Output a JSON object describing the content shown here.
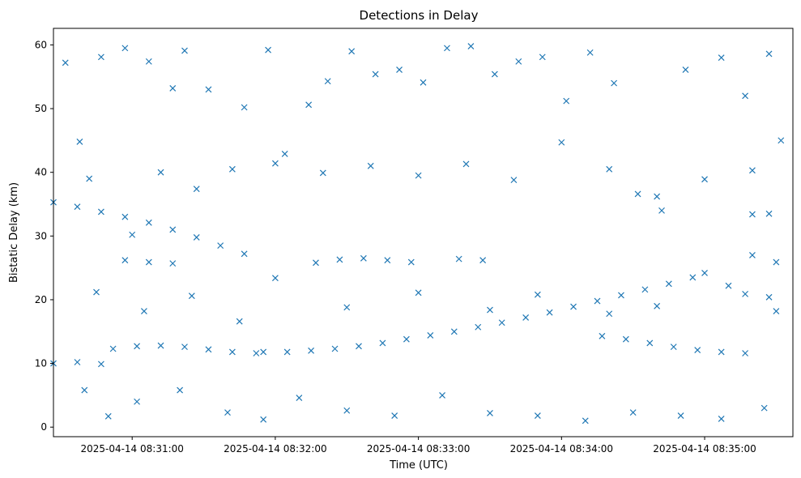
{
  "chart_data": {
    "type": "scatter",
    "title": "Detections in Delay",
    "xlabel": "Time (UTC)",
    "ylabel": "Bistatic Delay (km)",
    "marker": "x",
    "color": "#1f77b4",
    "x_type": "time",
    "xlim": [
      "2025-04-14 08:30:27",
      "2025-04-14 08:35:37"
    ],
    "ylim": [
      -1.5,
      62.6
    ],
    "xticks": [
      "2025-04-14 08:31:00",
      "2025-04-14 08:32:00",
      "2025-04-14 08:33:00",
      "2025-04-14 08:34:00",
      "2025-04-14 08:35:00"
    ],
    "yticks": [
      0,
      10,
      20,
      30,
      40,
      50,
      60
    ],
    "grid": false,
    "series": [
      {
        "values_description": "rising track",
        "points": [
          [
            "2025-04-14 08:31:55",
            11.8
          ],
          [
            "2025-04-14 08:32:05",
            11.8
          ],
          [
            "2025-04-14 08:32:15",
            12.0
          ],
          [
            "2025-04-14 08:32:25",
            12.3
          ],
          [
            "2025-04-14 08:32:35",
            12.7
          ],
          [
            "2025-04-14 08:32:45",
            13.2
          ],
          [
            "2025-04-14 08:32:55",
            13.8
          ],
          [
            "2025-04-14 08:33:05",
            14.4
          ],
          [
            "2025-04-14 08:33:15",
            15.0
          ],
          [
            "2025-04-14 08:33:25",
            15.7
          ],
          [
            "2025-04-14 08:33:35",
            16.4
          ],
          [
            "2025-04-14 08:33:45",
            17.2
          ],
          [
            "2025-04-14 08:33:55",
            18.0
          ],
          [
            "2025-04-14 08:34:05",
            18.9
          ],
          [
            "2025-04-14 08:34:15",
            19.8
          ],
          [
            "2025-04-14 08:34:25",
            20.7
          ],
          [
            "2025-04-14 08:34:35",
            21.6
          ],
          [
            "2025-04-14 08:34:45",
            22.5
          ],
          [
            "2025-04-14 08:34:55",
            23.5
          ],
          [
            "2025-04-14 08:35:00",
            24.2
          ]
        ]
      },
      {
        "values_description": "falling track",
        "points": [
          [
            "2025-04-14 08:30:27",
            35.3
          ],
          [
            "2025-04-14 08:30:37",
            34.6
          ],
          [
            "2025-04-14 08:30:47",
            33.8
          ],
          [
            "2025-04-14 08:30:57",
            33.0
          ],
          [
            "2025-04-14 08:31:07",
            32.1
          ],
          [
            "2025-04-14 08:31:17",
            31.0
          ],
          [
            "2025-04-14 08:31:27",
            29.8
          ],
          [
            "2025-04-14 08:31:37",
            28.5
          ],
          [
            "2025-04-14 08:31:47",
            27.2
          ]
        ]
      },
      {
        "values_description": "low track",
        "points": [
          [
            "2025-04-14 08:30:52",
            12.3
          ],
          [
            "2025-04-14 08:31:02",
            12.7
          ],
          [
            "2025-04-14 08:31:12",
            12.8
          ],
          [
            "2025-04-14 08:31:22",
            12.6
          ],
          [
            "2025-04-14 08:31:32",
            12.2
          ],
          [
            "2025-04-14 08:31:42",
            11.8
          ],
          [
            "2025-04-14 08:31:52",
            11.6
          ],
          [
            "2025-04-14 08:34:17",
            14.3
          ],
          [
            "2025-04-14 08:34:27",
            13.8
          ],
          [
            "2025-04-14 08:34:37",
            13.2
          ],
          [
            "2025-04-14 08:34:47",
            12.6
          ],
          [
            "2025-04-14 08:34:57",
            12.1
          ],
          [
            "2025-04-14 08:35:07",
            11.8
          ],
          [
            "2025-04-14 08:35:17",
            11.6
          ]
        ]
      },
      {
        "values_description": "mid track",
        "points": [
          [
            "2025-04-14 08:30:57",
            26.2
          ],
          [
            "2025-04-14 08:31:07",
            25.9
          ],
          [
            "2025-04-14 08:31:17",
            25.7
          ],
          [
            "2025-04-14 08:32:17",
            25.8
          ],
          [
            "2025-04-14 08:32:27",
            26.3
          ],
          [
            "2025-04-14 08:32:37",
            26.5
          ],
          [
            "2025-04-14 08:32:47",
            26.2
          ],
          [
            "2025-04-14 08:32:57",
            25.9
          ],
          [
            "2025-04-14 08:33:17",
            26.4
          ],
          [
            "2025-04-14 08:33:27",
            26.2
          ],
          [
            "2025-04-14 08:35:17",
            20.9
          ],
          [
            "2025-04-14 08:35:27",
            20.4
          ],
          [
            "2025-04-14 08:35:20",
            33.4
          ],
          [
            "2025-04-14 08:35:27",
            33.5
          ],
          [
            "2025-04-14 08:35:20",
            27.0
          ],
          [
            "2025-04-14 08:35:30",
            25.9
          ],
          [
            "2025-04-14 08:30:27",
            10.0
          ],
          [
            "2025-04-14 08:30:37",
            10.2
          ],
          [
            "2025-04-14 08:30:47",
            9.9
          ]
        ]
      },
      {
        "values_description": "scatter noise",
        "points": [
          [
            "2025-04-14 08:30:32",
            57.2
          ],
          [
            "2025-04-14 08:30:38",
            44.8
          ],
          [
            "2025-04-14 08:30:47",
            58.1
          ],
          [
            "2025-04-14 08:30:57",
            59.5
          ],
          [
            "2025-04-14 08:31:07",
            57.4
          ],
          [
            "2025-04-14 08:31:17",
            53.2
          ],
          [
            "2025-04-14 08:31:22",
            59.1
          ],
          [
            "2025-04-14 08:31:32",
            53.0
          ],
          [
            "2025-04-14 08:31:47",
            50.2
          ],
          [
            "2025-04-14 08:31:57",
            59.2
          ],
          [
            "2025-04-14 08:32:04",
            42.9
          ],
          [
            "2025-04-14 08:32:14",
            50.6
          ],
          [
            "2025-04-14 08:32:22",
            54.3
          ],
          [
            "2025-04-14 08:32:32",
            59.0
          ],
          [
            "2025-04-14 08:32:42",
            55.4
          ],
          [
            "2025-04-14 08:32:52",
            56.1
          ],
          [
            "2025-04-14 08:33:02",
            54.1
          ],
          [
            "2025-04-14 08:33:12",
            59.5
          ],
          [
            "2025-04-14 08:33:22",
            59.8
          ],
          [
            "2025-04-14 08:33:32",
            55.4
          ],
          [
            "2025-04-14 08:33:42",
            57.4
          ],
          [
            "2025-04-14 08:33:52",
            58.1
          ],
          [
            "2025-04-14 08:34:02",
            51.2
          ],
          [
            "2025-04-14 08:34:12",
            58.8
          ],
          [
            "2025-04-14 08:34:22",
            54.0
          ],
          [
            "2025-04-14 08:34:32",
            36.6
          ],
          [
            "2025-04-14 08:34:42",
            34.0
          ],
          [
            "2025-04-14 08:34:52",
            56.1
          ],
          [
            "2025-04-14 08:35:07",
            58.0
          ],
          [
            "2025-04-14 08:35:17",
            52.0
          ],
          [
            "2025-04-14 08:35:27",
            58.6
          ],
          [
            "2025-04-14 08:35:32",
            45.0
          ],
          [
            "2025-04-14 08:30:42",
            39.0
          ],
          [
            "2025-04-14 08:31:00",
            30.2
          ],
          [
            "2025-04-14 08:31:12",
            40.0
          ],
          [
            "2025-04-14 08:31:27",
            37.4
          ],
          [
            "2025-04-14 08:31:42",
            40.5
          ],
          [
            "2025-04-14 08:32:00",
            41.4
          ],
          [
            "2025-04-14 08:32:20",
            39.9
          ],
          [
            "2025-04-14 08:32:40",
            41.0
          ],
          [
            "2025-04-14 08:33:00",
            39.5
          ],
          [
            "2025-04-14 08:33:20",
            41.3
          ],
          [
            "2025-04-14 08:33:40",
            38.8
          ],
          [
            "2025-04-14 08:34:00",
            44.7
          ],
          [
            "2025-04-14 08:34:20",
            40.5
          ],
          [
            "2025-04-14 08:34:40",
            36.2
          ],
          [
            "2025-04-14 08:35:00",
            38.9
          ],
          [
            "2025-04-14 08:35:20",
            40.3
          ],
          [
            "2025-04-14 08:30:40",
            5.8
          ],
          [
            "2025-04-14 08:30:50",
            1.7
          ],
          [
            "2025-04-14 08:31:02",
            4.0
          ],
          [
            "2025-04-14 08:31:20",
            5.8
          ],
          [
            "2025-04-14 08:31:40",
            2.3
          ],
          [
            "2025-04-14 08:31:55",
            1.2
          ],
          [
            "2025-04-14 08:32:10",
            4.6
          ],
          [
            "2025-04-14 08:32:30",
            2.6
          ],
          [
            "2025-04-14 08:32:50",
            1.8
          ],
          [
            "2025-04-14 08:33:10",
            5.0
          ],
          [
            "2025-04-14 08:33:30",
            2.2
          ],
          [
            "2025-04-14 08:33:50",
            1.8
          ],
          [
            "2025-04-14 08:34:10",
            1.0
          ],
          [
            "2025-04-14 08:34:30",
            2.3
          ],
          [
            "2025-04-14 08:34:50",
            1.8
          ],
          [
            "2025-04-14 08:35:07",
            1.3
          ],
          [
            "2025-04-14 08:35:25",
            3.0
          ],
          [
            "2025-04-14 08:30:45",
            21.2
          ],
          [
            "2025-04-14 08:31:05",
            18.2
          ],
          [
            "2025-04-14 08:31:25",
            20.6
          ],
          [
            "2025-04-14 08:31:45",
            16.6
          ],
          [
            "2025-04-14 08:32:00",
            23.4
          ],
          [
            "2025-04-14 08:32:30",
            18.8
          ],
          [
            "2025-04-14 08:33:00",
            21.1
          ],
          [
            "2025-04-14 08:33:30",
            18.4
          ],
          [
            "2025-04-14 08:33:50",
            20.8
          ],
          [
            "2025-04-14 08:34:20",
            17.8
          ],
          [
            "2025-04-14 08:34:40",
            19.0
          ],
          [
            "2025-04-14 08:35:10",
            22.2
          ],
          [
            "2025-04-14 08:35:30",
            18.2
          ]
        ]
      }
    ]
  }
}
